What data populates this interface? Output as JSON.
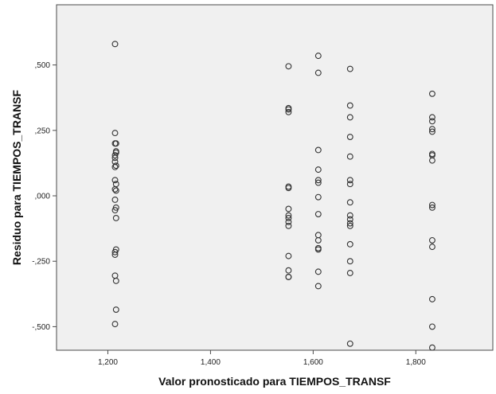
{
  "chart_data": {
    "type": "scatter",
    "title": "",
    "xlabel": "Valor pronosticado para TIEMPOS_TRANSF",
    "ylabel": "Residuo para TIEMPOS_TRANSF",
    "xlim": [
      1.1,
      1.95
    ],
    "ylim": [
      -0.59,
      0.73
    ],
    "x_ticks": [
      1.2,
      1.4,
      1.6,
      1.8
    ],
    "x_tick_labels": [
      "1,200",
      "1,400",
      "1,600",
      "1,800"
    ],
    "y_ticks": [
      0.5,
      0.25,
      0.0,
      -0.25,
      -0.5
    ],
    "y_tick_labels": [
      ",500",
      ",250",
      ",000",
      "-,250",
      "-,500"
    ],
    "grid": false,
    "plot_background": "#f0f0f0",
    "marker": "open-circle",
    "marker_color": "#333333",
    "points": [
      {
        "x": 1.214,
        "y": 0.58
      },
      {
        "x": 1.214,
        "y": 0.24
      },
      {
        "x": 1.214,
        "y": 0.2
      },
      {
        "x": 1.216,
        "y": 0.2
      },
      {
        "x": 1.216,
        "y": 0.17
      },
      {
        "x": 1.216,
        "y": 0.165
      },
      {
        "x": 1.214,
        "y": 0.155
      },
      {
        "x": 1.214,
        "y": 0.145
      },
      {
        "x": 1.214,
        "y": 0.13
      },
      {
        "x": 1.216,
        "y": 0.115
      },
      {
        "x": 1.214,
        "y": 0.11
      },
      {
        "x": 1.214,
        "y": 0.06
      },
      {
        "x": 1.216,
        "y": 0.045
      },
      {
        "x": 1.214,
        "y": 0.025
      },
      {
        "x": 1.216,
        "y": 0.02
      },
      {
        "x": 1.214,
        "y": -0.015
      },
      {
        "x": 1.216,
        "y": -0.045
      },
      {
        "x": 1.214,
        "y": -0.055
      },
      {
        "x": 1.216,
        "y": -0.085
      },
      {
        "x": 1.216,
        "y": -0.205
      },
      {
        "x": 1.214,
        "y": -0.215
      },
      {
        "x": 1.214,
        "y": -0.225
      },
      {
        "x": 1.214,
        "y": -0.305
      },
      {
        "x": 1.216,
        "y": -0.325
      },
      {
        "x": 1.216,
        "y": -0.435
      },
      {
        "x": 1.214,
        "y": -0.49
      },
      {
        "x": 1.552,
        "y": 0.495
      },
      {
        "x": 1.552,
        "y": 0.335
      },
      {
        "x": 1.552,
        "y": 0.33
      },
      {
        "x": 1.552,
        "y": 0.32
      },
      {
        "x": 1.552,
        "y": 0.035
      },
      {
        "x": 1.552,
        "y": 0.03
      },
      {
        "x": 1.552,
        "y": -0.05
      },
      {
        "x": 1.552,
        "y": -0.075
      },
      {
        "x": 1.552,
        "y": -0.085
      },
      {
        "x": 1.552,
        "y": -0.1
      },
      {
        "x": 1.552,
        "y": -0.115
      },
      {
        "x": 1.552,
        "y": -0.23
      },
      {
        "x": 1.552,
        "y": -0.285
      },
      {
        "x": 1.552,
        "y": -0.31
      },
      {
        "x": 1.552,
        "y": -0.31
      },
      {
        "x": 1.61,
        "y": 0.535
      },
      {
        "x": 1.61,
        "y": 0.47
      },
      {
        "x": 1.61,
        "y": 0.175
      },
      {
        "x": 1.61,
        "y": 0.1
      },
      {
        "x": 1.61,
        "y": 0.06
      },
      {
        "x": 1.61,
        "y": 0.05
      },
      {
        "x": 1.61,
        "y": -0.005
      },
      {
        "x": 1.61,
        "y": -0.07
      },
      {
        "x": 1.61,
        "y": -0.15
      },
      {
        "x": 1.61,
        "y": -0.17
      },
      {
        "x": 1.61,
        "y": -0.2
      },
      {
        "x": 1.61,
        "y": -0.205
      },
      {
        "x": 1.61,
        "y": -0.29
      },
      {
        "x": 1.61,
        "y": -0.345
      },
      {
        "x": 1.672,
        "y": 0.485
      },
      {
        "x": 1.672,
        "y": 0.345
      },
      {
        "x": 1.672,
        "y": 0.3
      },
      {
        "x": 1.672,
        "y": 0.225
      },
      {
        "x": 1.672,
        "y": 0.15
      },
      {
        "x": 1.672,
        "y": 0.06
      },
      {
        "x": 1.672,
        "y": 0.045
      },
      {
        "x": 1.672,
        "y": -0.025
      },
      {
        "x": 1.672,
        "y": -0.075
      },
      {
        "x": 1.672,
        "y": -0.09
      },
      {
        "x": 1.672,
        "y": -0.105
      },
      {
        "x": 1.672,
        "y": -0.115
      },
      {
        "x": 1.672,
        "y": -0.185
      },
      {
        "x": 1.672,
        "y": -0.25
      },
      {
        "x": 1.672,
        "y": -0.295
      },
      {
        "x": 1.672,
        "y": -0.565
      },
      {
        "x": 1.832,
        "y": 0.39
      },
      {
        "x": 1.832,
        "y": 0.3
      },
      {
        "x": 1.832,
        "y": 0.285
      },
      {
        "x": 1.832,
        "y": 0.255
      },
      {
        "x": 1.832,
        "y": 0.245
      },
      {
        "x": 1.832,
        "y": 0.16
      },
      {
        "x": 1.832,
        "y": 0.155
      },
      {
        "x": 1.832,
        "y": 0.135
      },
      {
        "x": 1.832,
        "y": -0.035
      },
      {
        "x": 1.832,
        "y": -0.045
      },
      {
        "x": 1.832,
        "y": -0.17
      },
      {
        "x": 1.832,
        "y": -0.195
      },
      {
        "x": 1.832,
        "y": -0.395
      },
      {
        "x": 1.832,
        "y": -0.5
      },
      {
        "x": 1.832,
        "y": -0.58
      }
    ]
  }
}
